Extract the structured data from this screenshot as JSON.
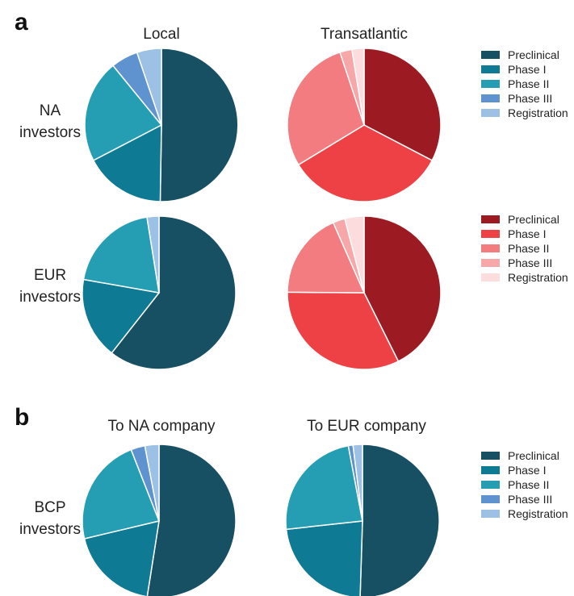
{
  "panels": [
    {
      "letter": "a",
      "columns": [
        "Local",
        "Transatlantic"
      ],
      "rows": [
        [
          "NA",
          "investors"
        ],
        [
          "EUR",
          "investors"
        ]
      ]
    },
    {
      "letter": "b",
      "columns": [
        "To NA company",
        "To EUR company"
      ],
      "rows": [
        [
          "BCP",
          "investors"
        ]
      ]
    }
  ],
  "legends": [
    {
      "entries": [
        "Preclinical",
        "Phase I",
        "Phase II",
        "Phase III",
        "Registration"
      ],
      "colors": [
        "#174f63",
        "#0e7a93",
        "#259eb4",
        "#5f93cf",
        "#9cc1e5"
      ]
    },
    {
      "entries": [
        "Preclinical",
        "Phase I",
        "Phase II",
        "Phase III",
        "Registration"
      ],
      "colors": [
        "#9c1b22",
        "#ee4146",
        "#f27c7f",
        "#f8a7a8",
        "#fcdcdc"
      ]
    },
    {
      "entries": [
        "Preclinical",
        "Phase I",
        "Phase II",
        "Phase III",
        "Registration"
      ],
      "colors": [
        "#174f63",
        "#0e7a93",
        "#259eb4",
        "#5f93cf",
        "#9cc1e5"
      ]
    }
  ],
  "chart_data": [
    {
      "type": "pie",
      "panel": "a",
      "column": "Local",
      "row": "NA investors",
      "categories": [
        "Preclinical",
        "Phase I",
        "Phase II",
        "Phase III",
        "Registration"
      ],
      "values": [
        48.5,
        16.5,
        21,
        5.5,
        5
      ],
      "colors": [
        "#174f63",
        "#0e7a93",
        "#259eb4",
        "#5f93cf",
        "#9cc1e5"
      ]
    },
    {
      "type": "pie",
      "panel": "a",
      "column": "Transatlantic",
      "row": "NA investors",
      "categories": [
        "Preclinical",
        "Phase I",
        "Phase II",
        "Phase III",
        "Registration"
      ],
      "values": [
        32,
        33,
        28,
        2.5,
        2.5
      ],
      "colors": [
        "#9c1b22",
        "#ee4146",
        "#f27c7f",
        "#f8a7a8",
        "#fcdcdc"
      ]
    },
    {
      "type": "pie",
      "panel": "a",
      "column": "Local",
      "row": "EUR investors",
      "categories": [
        "Preclinical",
        "Phase I",
        "Phase II",
        "Phase III",
        "Registration"
      ],
      "values": [
        60,
        17,
        19.5,
        0,
        2.5
      ],
      "colors": [
        "#174f63",
        "#0e7a93",
        "#259eb4",
        "#5f93cf",
        "#9cc1e5"
      ]
    },
    {
      "type": "pie",
      "panel": "a",
      "column": "Transatlantic",
      "row": "EUR investors",
      "categories": [
        "Preclinical",
        "Phase I",
        "Phase II",
        "Phase III",
        "Registration"
      ],
      "values": [
        42,
        32,
        18,
        2.5,
        4
      ],
      "colors": [
        "#9c1b22",
        "#ee4146",
        "#f27c7f",
        "#f8a7a8",
        "#fcdcdc"
      ]
    },
    {
      "type": "pie",
      "panel": "b",
      "column": "To NA company",
      "row": "BCP investors",
      "categories": [
        "Preclinical",
        "Phase I",
        "Phase II",
        "Phase III",
        "Registration"
      ],
      "values": [
        53,
        19,
        23,
        3,
        3
      ],
      "colors": [
        "#174f63",
        "#0e7a93",
        "#259eb4",
        "#5f93cf",
        "#9cc1e5"
      ]
    },
    {
      "type": "pie",
      "panel": "b",
      "column": "To EUR company",
      "row": "BCP investors",
      "categories": [
        "Preclinical",
        "Phase I",
        "Phase II",
        "Phase III",
        "Registration"
      ],
      "values": [
        51,
        23,
        24,
        1,
        2
      ],
      "colors": [
        "#174f63",
        "#0e7a93",
        "#259eb4",
        "#5f93cf",
        "#9cc1e5"
      ]
    }
  ]
}
